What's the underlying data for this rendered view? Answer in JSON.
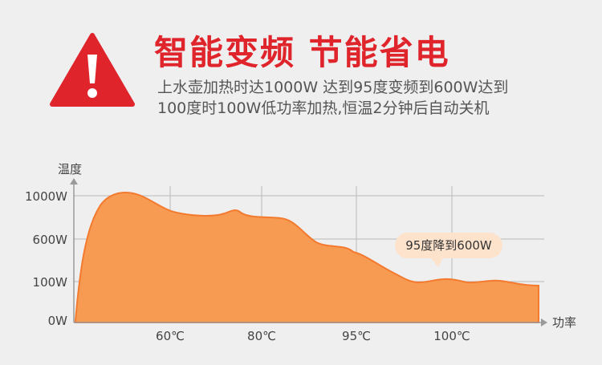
{
  "header": {
    "title": "智能变频 节能省电",
    "desc_line1": "上水壶加热时达1000W  达到95度变频到600W达到",
    "desc_line2": "100度时100W低功率加热,恒温2分钟后自动关机",
    "warning_icon": "warning-triangle-icon",
    "accent": "#e0242b"
  },
  "chart_data": {
    "type": "area",
    "title": "",
    "ylabel": "温度",
    "xlabel": "功率",
    "y_ticks": [
      "1000W",
      "600W",
      "100W",
      "0W"
    ],
    "x_ticks": [
      "60℃",
      "80℃",
      "95℃",
      "100℃"
    ],
    "annotation": "95度降到600W",
    "fill_color": "#f79b52",
    "line_color": "#f37a2e"
  }
}
